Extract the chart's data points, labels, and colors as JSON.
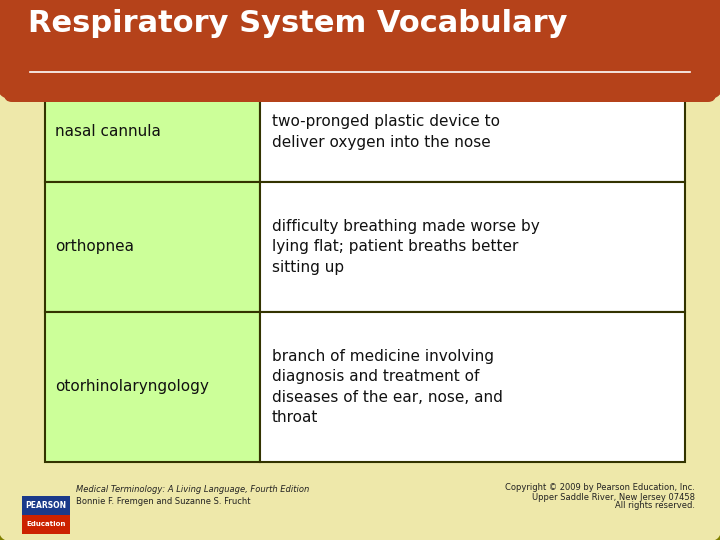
{
  "title": "Respiratory System Vocabulary",
  "title_color": "#FFFFFF",
  "title_bg_color": "#B5421A",
  "background_color": "#EEE8AA",
  "table_bg_color": "#CCFF99",
  "table_border_color": "#333300",
  "table_outline_color": "#808000",
  "rows": [
    {
      "term": "nasal cannula",
      "definition": "two-pronged plastic device to\ndeliver oxygen into the nose"
    },
    {
      "term": "orthopnea",
      "definition": "difficulty breathing made worse by\nlying flat; patient breaths better\nsitting up"
    },
    {
      "term": "otorhinolaryngology",
      "definition": "branch of medicine involving\ndiagnosis and treatment of\ndiseases of the ear, nose, and\nthroat"
    }
  ],
  "footer_left_line1": "Medical Terminology: A Living Language, Fourth Edition",
  "footer_left_line2": "Bonnie F. Fremgen and Suzanne S. Frucht",
  "footer_right_line1": "Copyright © 2009 by Pearson Education, Inc.",
  "footer_right_line2": "Upper Saddle River, New Jersey 07458",
  "footer_right_line3": "All rights reserved.",
  "pearson_box_color1": "#1A3A8A",
  "pearson_box_color2": "#CC2200",
  "term_fontsize": 11,
  "def_fontsize": 11,
  "title_fontsize": 22
}
